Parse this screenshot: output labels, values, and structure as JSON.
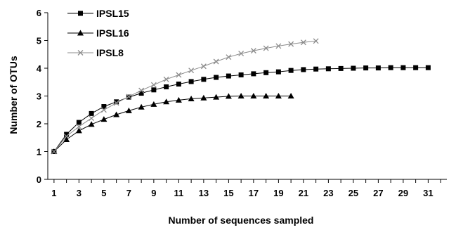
{
  "chart_data": {
    "type": "line",
    "title": "",
    "xlabel": "Number of sequences sampled",
    "ylabel": "Number of OTUs",
    "xlim": [
      0.5,
      32.5
    ],
    "ylim": [
      0,
      6
    ],
    "x_tick_labels": [
      "1",
      "3",
      "5",
      "7",
      "9",
      "11",
      "13",
      "15",
      "17",
      "19",
      "21",
      "23",
      "25",
      "27",
      "29",
      "31"
    ],
    "y_tick_labels": [
      "0",
      "1",
      "2",
      "3",
      "4",
      "5",
      "6"
    ],
    "grid": false,
    "legend_position": "top-left",
    "series": [
      {
        "name": "IPSL15",
        "marker": "square",
        "color": "#000000",
        "x": [
          1,
          2,
          3,
          4,
          5,
          6,
          7,
          8,
          9,
          10,
          11,
          12,
          13,
          14,
          15,
          16,
          17,
          18,
          19,
          20,
          21,
          22,
          23,
          24,
          25,
          26,
          27,
          28,
          29,
          30,
          31
        ],
        "y": [
          1.0,
          1.62,
          2.05,
          2.37,
          2.62,
          2.79,
          2.96,
          3.1,
          3.22,
          3.33,
          3.43,
          3.52,
          3.6,
          3.67,
          3.72,
          3.76,
          3.8,
          3.84,
          3.87,
          3.92,
          3.95,
          3.97,
          3.98,
          3.99,
          4.0,
          4.01,
          4.01,
          4.02,
          4.02,
          4.02,
          4.02
        ]
      },
      {
        "name": "IPSL16",
        "marker": "triangle",
        "color": "#000000",
        "x": [
          1,
          2,
          3,
          4,
          5,
          6,
          7,
          8,
          9,
          10,
          11,
          12,
          13,
          14,
          15,
          16,
          17,
          18,
          19,
          20
        ],
        "y": [
          1.0,
          1.43,
          1.75,
          1.98,
          2.16,
          2.33,
          2.47,
          2.6,
          2.7,
          2.79,
          2.85,
          2.9,
          2.93,
          2.96,
          2.99,
          3.0,
          3.0,
          3.0,
          3.0,
          3.0
        ]
      },
      {
        "name": "IPSL8",
        "marker": "x",
        "color": "#8c8c8c",
        "x": [
          1,
          2,
          3,
          4,
          5,
          6,
          7,
          8,
          9,
          10,
          11,
          12,
          13,
          14,
          15,
          16,
          17,
          18,
          19,
          20,
          21,
          22
        ],
        "y": [
          1.0,
          1.55,
          1.9,
          2.2,
          2.5,
          2.75,
          2.98,
          3.2,
          3.4,
          3.6,
          3.76,
          3.92,
          4.07,
          4.24,
          4.4,
          4.53,
          4.63,
          4.72,
          4.8,
          4.87,
          4.93,
          4.98
        ]
      }
    ]
  }
}
